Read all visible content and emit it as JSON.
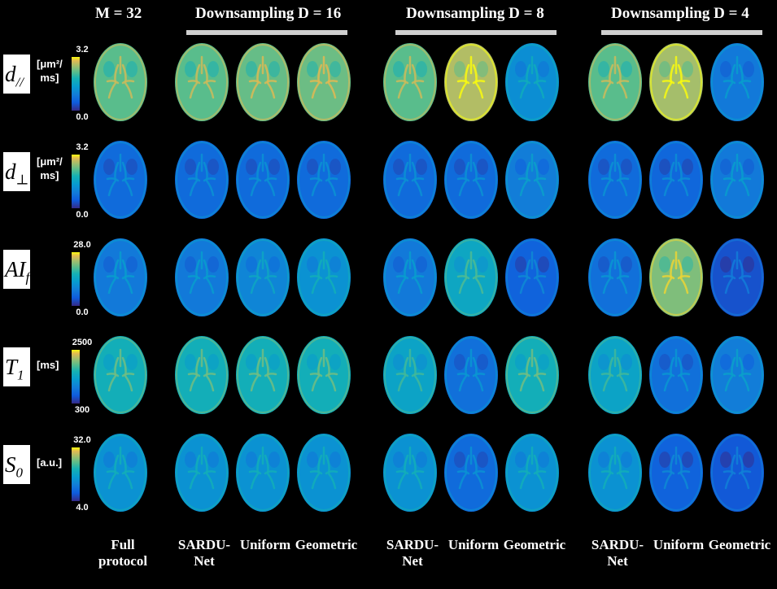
{
  "headers": {
    "m32": "M = 32",
    "d16": "Downsampling D = 16",
    "d8": "Downsampling D = 8",
    "d4": "Downsampling D = 4"
  },
  "rows": [
    {
      "param_main": "d",
      "param_sub": "//",
      "unit_lines": [
        "[μm²/",
        "ms]"
      ],
      "cbar_max": "3.2",
      "cbar_min": "0.0"
    },
    {
      "param_main": "d",
      "param_sub": "⊥",
      "unit_lines": [
        "[μm²/",
        "ms]"
      ],
      "cbar_max": "3.2",
      "cbar_min": "0.0"
    },
    {
      "param_main": "AI",
      "param_sub": "f",
      "unit_lines": [],
      "cbar_max": "28.0",
      "cbar_min": "0.0"
    },
    {
      "param_main": "T",
      "param_sub": "1",
      "unit_lines": [
        "[ms]"
      ],
      "cbar_max": "2500",
      "cbar_min": "300"
    },
    {
      "param_main": "S",
      "param_sub": "0",
      "unit_lines": [
        "[a.u.]"
      ],
      "cbar_max": "32.0",
      "cbar_min": "4.0"
    }
  ],
  "footers": [
    [
      "Full",
      "protocol"
    ],
    [
      "SARDU-",
      "Net"
    ],
    [
      "Uniform"
    ],
    [
      "Geometric"
    ],
    [
      "SARDU-",
      "Net"
    ],
    [
      "Uniform"
    ],
    [
      "Geometric"
    ],
    [
      "SARDU-",
      "Net"
    ],
    [
      "Uniform"
    ],
    [
      "Geometric"
    ]
  ],
  "brain_levels": [
    [
      0.72,
      0.72,
      0.74,
      0.75,
      0.72,
      0.86,
      0.38,
      0.72,
      0.84,
      0.28
    ],
    [
      0.22,
      0.22,
      0.22,
      0.22,
      0.22,
      0.22,
      0.3,
      0.22,
      0.2,
      0.28
    ],
    [
      0.28,
      0.28,
      0.34,
      0.4,
      0.28,
      0.52,
      0.18,
      0.24,
      0.78,
      0.12
    ],
    [
      0.58,
      0.58,
      0.58,
      0.58,
      0.5,
      0.24,
      0.58,
      0.5,
      0.24,
      0.3
    ],
    [
      0.4,
      0.4,
      0.4,
      0.4,
      0.4,
      0.22,
      0.4,
      0.4,
      0.18,
      0.14
    ]
  ]
}
